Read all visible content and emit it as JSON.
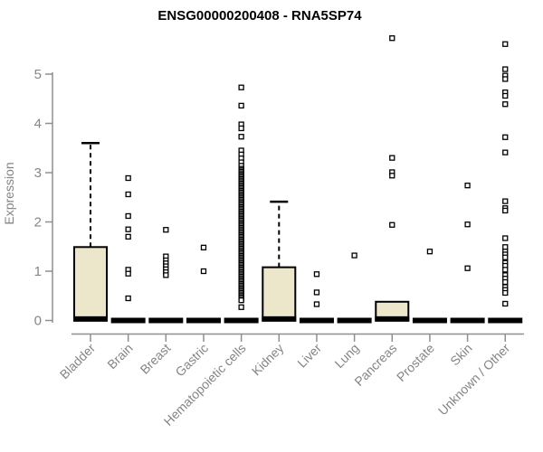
{
  "chart_data": {
    "type": "boxplot",
    "title": "ENSG00000200408 - RNA5SP74",
    "xlabel": "",
    "ylabel": "Expression",
    "yticks": [
      0,
      1,
      2,
      3,
      4,
      5
    ],
    "ylim": [
      0,
      5.8
    ],
    "grid": false,
    "categories": [
      "Bladder",
      "Brain",
      "Breast",
      "Gastric",
      "Hematopoietic cells",
      "Kidney",
      "Liver",
      "Lung",
      "Pancreas",
      "Prostate",
      "Skin",
      "Unknown / Other"
    ],
    "groups": [
      {
        "name": "Bladder",
        "q1": 0,
        "median": 0.03,
        "q3": 1.49,
        "whisker_low": 0,
        "whisker_high": 3.6,
        "outliers": []
      },
      {
        "name": "Brain",
        "q1": 0,
        "median": 0,
        "q3": 0,
        "whisker_low": 0,
        "whisker_high": 0,
        "outliers": [
          2.89,
          2.56,
          2.12,
          1.85,
          1.7,
          1.03,
          0.95,
          0.45
        ]
      },
      {
        "name": "Breast",
        "q1": 0,
        "median": 0,
        "q3": 0,
        "whisker_low": 0,
        "whisker_high": 0,
        "outliers": [
          1.84,
          1.3,
          1.22,
          1.16,
          1.1,
          1.04,
          0.98,
          0.92
        ]
      },
      {
        "name": "Gastric",
        "q1": 0,
        "median": 0,
        "q3": 0,
        "whisker_low": 0,
        "whisker_high": 0,
        "outliers": [
          1.48,
          1.0
        ]
      },
      {
        "name": "Hematopoietic cells",
        "q1": 0,
        "median": 0,
        "q3": 0,
        "whisker_low": 0,
        "whisker_high": 0,
        "outliers": [
          4.73,
          4.36,
          3.98,
          3.9,
          3.73,
          3.45,
          3.37,
          3.29,
          3.21,
          3.14,
          0.27
        ],
        "dense_outliers": {
          "from": 0.39,
          "to": 3.08,
          "step": 0.03
        }
      },
      {
        "name": "Kidney",
        "q1": 0,
        "median": 0.03,
        "q3": 1.08,
        "whisker_low": 0,
        "whisker_high": 2.41,
        "outliers": []
      },
      {
        "name": "Liver",
        "q1": 0,
        "median": 0,
        "q3": 0,
        "whisker_low": 0,
        "whisker_high": 0,
        "outliers": [
          0.94,
          0.57,
          0.33
        ]
      },
      {
        "name": "Lung",
        "q1": 0,
        "median": 0,
        "q3": 0,
        "whisker_low": 0,
        "whisker_high": 0,
        "outliers": [
          1.32
        ]
      },
      {
        "name": "Pancreas",
        "q1": 0,
        "median": 0.03,
        "q3": 0.38,
        "whisker_low": 0,
        "whisker_high": 0.38,
        "outliers": [
          5.73,
          3.3,
          3.01,
          2.94,
          1.94
        ]
      },
      {
        "name": "Prostate",
        "q1": 0,
        "median": 0,
        "q3": 0,
        "whisker_low": 0,
        "whisker_high": 0,
        "outliers": [
          1.4
        ]
      },
      {
        "name": "Skin",
        "q1": 0,
        "median": 0,
        "q3": 0,
        "whisker_low": 0,
        "whisker_high": 0,
        "outliers": [
          2.74,
          1.95,
          1.06
        ]
      },
      {
        "name": "Unknown / Other",
        "q1": 0,
        "median": 0,
        "q3": 0,
        "whisker_low": 0,
        "whisker_high": 0,
        "outliers": [
          5.61,
          5.1,
          4.97,
          4.9,
          4.63,
          4.56,
          4.39,
          3.72,
          3.41,
          2.42,
          2.28,
          2.23,
          1.67,
          1.49,
          1.4,
          1.34,
          1.28,
          1.17,
          1.11,
          1.03,
          0.92,
          0.85,
          0.78,
          0.68,
          0.62,
          0.56,
          0.34
        ]
      }
    ],
    "colors": {
      "box_fill": "#ece7ca",
      "box_border": "#000000",
      "median": "#000000",
      "whisker": "#000000",
      "outlier_fill": "#ffffff",
      "outlier_border": "#000000",
      "axis_line": "#8f8f8f",
      "text_gray": "#858585",
      "title_color": "#000000",
      "background": "#ffffff"
    }
  }
}
